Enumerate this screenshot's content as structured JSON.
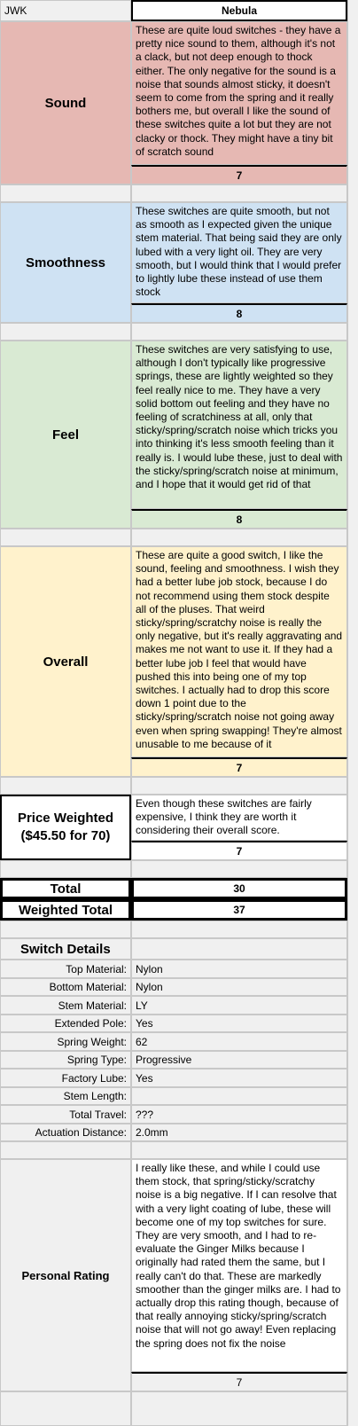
{
  "header": {
    "reviewer": "JWK",
    "switch_name": "Nebula"
  },
  "sound": {
    "label": "Sound",
    "review": "These are quite loud switches - they have a pretty nice sound to them, although it's not a clack, but not deep enough to thock either. The only negative for the sound is a noise that sounds almost sticky, it doesn't seem to come from the spring and it really bothers me, but overall I like the sound of these switches quite a lot but they are not clacky or thock. They might have a tiny bit of scratch sound",
    "score": "7"
  },
  "smoothness": {
    "label": "Smoothness",
    "review": "These switches are quite smooth, but not as smooth as I expected given the unique stem material. That being said they are only lubed with a very light oil. They are very smooth, but I would think that I would prefer to lightly lube these instead of use them stock",
    "score": "8"
  },
  "feel": {
    "label": "Feel",
    "review": "These switches are very satisfying to use, although I don't typically like progressive springs, these are lightly weighted so they feel really nice to me. They have a very solid bottom out feeling and they have no feeling of scratchiness at all, only that sticky/spring/scratch noise which tricks you into thinking it's less smooth feeling than it really is. I would lube these, just to deal with the  sticky/spring/scratch noise at minimum, and I hope that it would get rid of that",
    "score": "8"
  },
  "overall": {
    "label": "Overall",
    "review": "These are quite a good switch, I like the sound, feeling and smoothness. I wish they had a better lube job stock, because I do not recommend using them stock despite all of the pluses. That weird sticky/spring/scratchy noise is really the only negative, but it's really aggravating and makes me not want to use it. If they had a better lube job I feel that would have pushed this into being one of my top switches. I actually had to drop this score down 1 point due to the sticky/spring/scratch noise not going away even when spring swapping! They're almost unusable to me because of it",
    "score": "7"
  },
  "price": {
    "label_line1": "Price Weighted",
    "label_line2": "($45.50 for 70)",
    "review": "Even though these switches are fairly expensive, I think they are worth it considering their overall score.",
    "score": "7"
  },
  "totals": {
    "total_label": "Total",
    "total_value": "30",
    "weighted_label": "Weighted Total",
    "weighted_value": "37"
  },
  "details": {
    "title": "Switch Details",
    "rows": [
      {
        "label": "Top Material:",
        "value": "Nylon"
      },
      {
        "label": "Bottom Material:",
        "value": "Nylon"
      },
      {
        "label": "Stem Material:",
        "value": "LY"
      },
      {
        "label": "Extended Pole:",
        "value": "Yes"
      },
      {
        "label": "Spring Weight:",
        "value": "62"
      },
      {
        "label": "Spring Type:",
        "value": "Progressive"
      },
      {
        "label": "Factory Lube:",
        "value": "Yes"
      },
      {
        "label": "Stem Length:",
        "value": ""
      },
      {
        "label": "Total Travel:",
        "value": "???"
      },
      {
        "label": "Actuation Distance:",
        "value": "2.0mm"
      }
    ]
  },
  "personal": {
    "label": "Personal Rating",
    "review": "I really like these, and while I could use them stock, that spring/sticky/scratchy noise is a big negative. If I can resolve that with a very light coating of lube, these will become one of my top switches for sure. They are very smooth, and I had to re-evaluate the Ginger Milks because I originally had rated them the same, but I really can't do that. These are markedly smoother than the ginger milks are. I had to actually drop this rating though, because of that really annoying sticky/spring/scratch noise that will not go away! Even replacing the spring does not fix the noise",
    "score": "7"
  }
}
